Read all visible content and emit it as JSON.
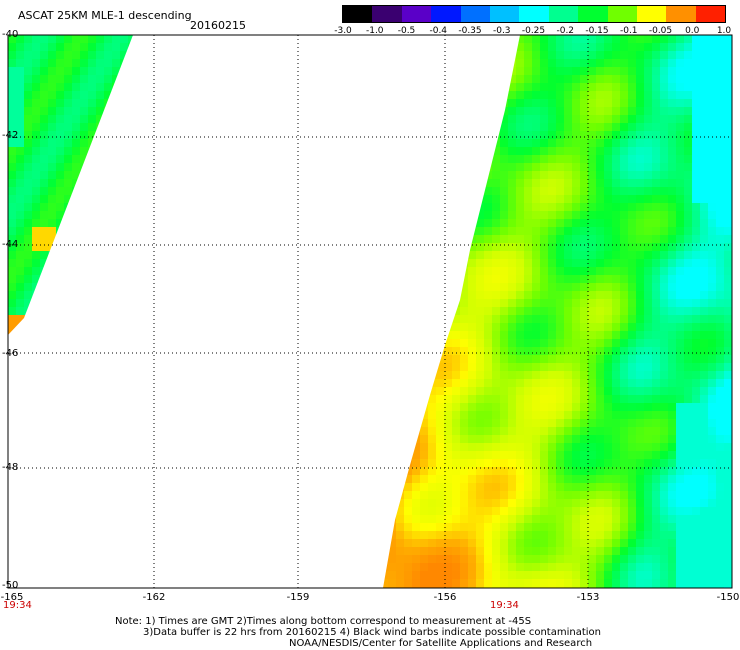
{
  "header": {
    "title": "ASCAT 25KM MLE-1 descending",
    "date": "20160215"
  },
  "colorbar": {
    "labels": [
      "-3.0",
      "-1.0",
      "-0.5",
      "-0.4",
      "-0.35",
      "-0.3",
      "-0.25",
      "-0.2",
      "-0.15",
      "-0.1",
      "-0.05",
      "0.0",
      "1.0"
    ],
    "colors": [
      "#000000",
      "#3a0070",
      "#5a00c8",
      "#0018ff",
      "#0070ff",
      "#00c0ff",
      "#00ffff",
      "#00ff90",
      "#00ff30",
      "#70ff00",
      "#ffff00",
      "#ff9000",
      "#ff2000"
    ]
  },
  "axes": {
    "y_ticks": [
      "-40",
      "-42",
      "-44",
      "-46",
      "-48",
      "-50"
    ],
    "x_ticks": [
      "-165",
      "-162",
      "-159",
      "-156",
      "-153",
      "-150"
    ],
    "time_left": "19:34",
    "time_mid": "19:34"
  },
  "footer": {
    "note1": "Note: 1) Times are GMT 2)Times along bottom correspond to measurement at -45S",
    "note2": "3)Data buffer is 22 hrs from 20160215 4) Black wind barbs indicate possible contamination",
    "credit": "NOAA/NESDIS/Center for Satellite Applications and Research"
  }
}
